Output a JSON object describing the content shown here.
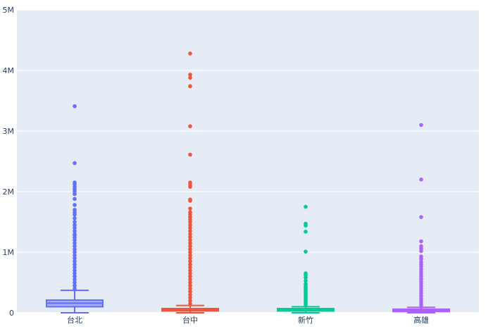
{
  "chart_data": {
    "type": "box",
    "categories": [
      "台北",
      "台中",
      "新竹",
      "高雄"
    ],
    "ylim": [
      0,
      5000000
    ],
    "yticks": [
      0,
      1000000,
      2000000,
      3000000,
      4000000,
      5000000
    ],
    "ytick_labels": [
      "0",
      "1M",
      "2M",
      "3M",
      "4M",
      "5M"
    ],
    "grid": true,
    "series": [
      {
        "category": "台北",
        "color": "#636efa",
        "min": 0,
        "q1": 100000,
        "median": 160000,
        "q3": 210000,
        "upper_fence": 370000,
        "outliers": [
          3410000,
          2470000,
          2150000,
          2120000,
          2080000,
          2040000,
          2000000,
          1960000,
          1880000,
          1780000,
          1700000,
          1660000,
          1620000,
          1560000,
          1500000,
          1450000,
          1400000,
          1350000,
          1300000,
          1280000,
          1240000,
          1200000,
          1150000,
          1100000,
          1050000,
          1000000,
          950000,
          900000,
          850000,
          800000,
          750000,
          700000,
          650000,
          600000,
          550000,
          500000,
          450000,
          400000
        ]
      },
      {
        "category": "台中",
        "color": "#EF553B",
        "min": 0,
        "q1": 30000,
        "median": 50000,
        "q3": 70000,
        "upper_fence": 120000,
        "outliers": [
          4280000,
          3930000,
          3880000,
          3740000,
          3080000,
          2610000,
          2150000,
          2110000,
          2080000,
          1870000,
          1850000,
          1720000,
          1660000,
          1620000,
          1580000,
          1540000,
          1500000,
          1450000,
          1400000,
          1350000,
          1300000,
          1250000,
          1200000,
          1150000,
          1100000,
          1050000,
          1000000,
          950000,
          900000,
          850000,
          800000,
          750000,
          700000,
          650000,
          600000,
          550000,
          500000,
          450000,
          400000,
          350000,
          300000,
          250000,
          200000,
          150000
        ]
      },
      {
        "category": "新竹",
        "color": "#00cc96",
        "min": 0,
        "q1": 30000,
        "median": 50000,
        "q3": 70000,
        "upper_fence": 100000,
        "outliers": [
          1750000,
          1470000,
          1440000,
          1340000,
          1010000,
          650000,
          620000,
          580000,
          530000,
          480000,
          450000,
          420000,
          390000,
          360000,
          330000,
          300000,
          270000,
          240000,
          210000,
          180000,
          150000,
          120000
        ]
      },
      {
        "category": "高雄",
        "color": "#ab63fa",
        "min": 0,
        "q1": 20000,
        "median": 40000,
        "q3": 60000,
        "upper_fence": 90000,
        "outliers": [
          3100000,
          2200000,
          1580000,
          1180000,
          1100000,
          1060000,
          1020000,
          930000,
          890000,
          840000,
          800000,
          760000,
          720000,
          680000,
          640000,
          600000,
          560000,
          520000,
          480000,
          440000,
          400000,
          360000,
          320000,
          280000,
          240000,
          200000,
          160000,
          120000
        ]
      }
    ]
  }
}
